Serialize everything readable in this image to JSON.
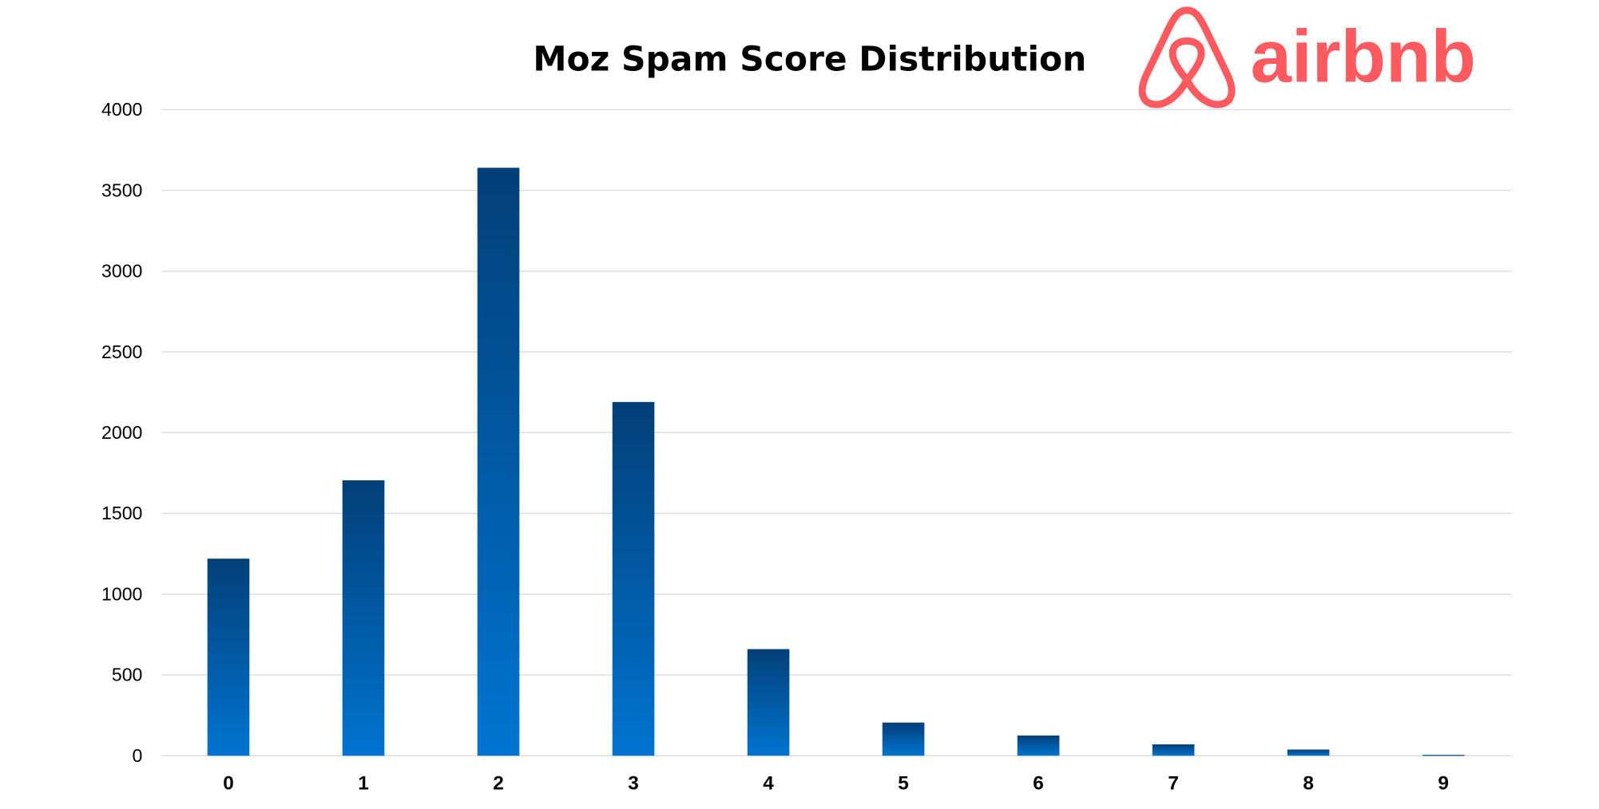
{
  "chart_data": {
    "type": "bar",
    "title": "Moz Spam Score Distribution",
    "xlabel": "",
    "ylabel": "",
    "categories": [
      "0",
      "1",
      "2",
      "3",
      "4",
      "5",
      "6",
      "7",
      "8",
      "9"
    ],
    "values": [
      1220,
      1705,
      3640,
      2190,
      660,
      205,
      125,
      70,
      38,
      5
    ],
    "ylim": [
      0,
      4000
    ],
    "yticks": [
      0,
      500,
      1000,
      1500,
      2000,
      2500,
      3000,
      3500,
      4000
    ],
    "grid": true,
    "legend": "none",
    "colors": {
      "bar_top": "#033f78",
      "bar_bottom": "#0074d0",
      "grid": "#d9d9d9"
    }
  },
  "logo": {
    "text": "airbnb",
    "color": "#ff5a5f"
  }
}
